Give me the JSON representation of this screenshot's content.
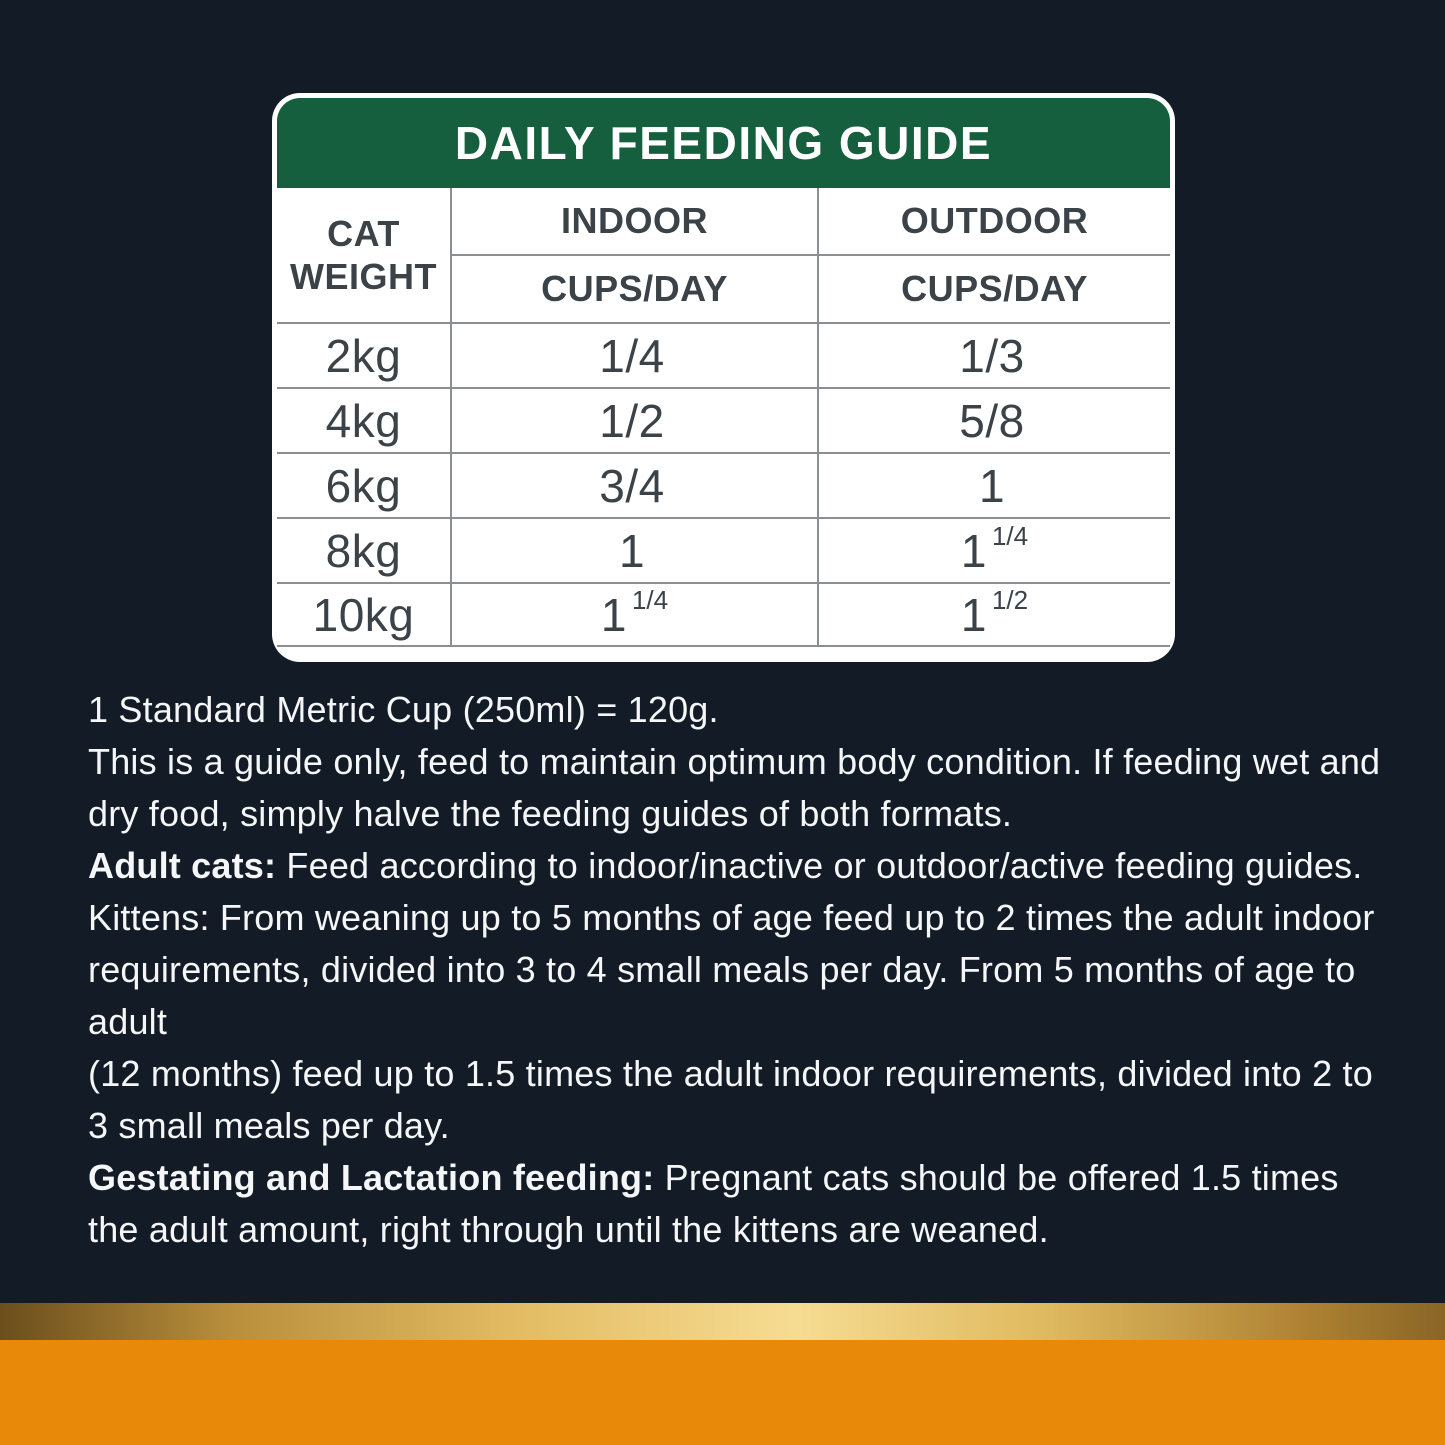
{
  "feeding_table": {
    "title": "DAILY FEEDING GUIDE",
    "columns": {
      "weight": "CAT WEIGHT",
      "indoor": {
        "label": "INDOOR",
        "sub": "CUPS/DAY"
      },
      "outdoor": {
        "label": "OUTDOOR",
        "sub": "CUPS/DAY"
      }
    },
    "rows": [
      {
        "weight": "2kg",
        "indoor": {
          "main": "1/4"
        },
        "outdoor": {
          "main": "1/3"
        }
      },
      {
        "weight": "4kg",
        "indoor": {
          "main": "1/2"
        },
        "outdoor": {
          "main": "5/8"
        }
      },
      {
        "weight": "6kg",
        "indoor": {
          "main": "3/4"
        },
        "outdoor": {
          "main": "1"
        }
      },
      {
        "weight": "8kg",
        "indoor": {
          "main": "1"
        },
        "outdoor": {
          "main": "1",
          "sup": "1/4"
        }
      },
      {
        "weight": "10kg",
        "indoor": {
          "main": "1",
          "sup": "1/4"
        },
        "outdoor": {
          "main": "1",
          "sup": "1/2"
        }
      }
    ]
  },
  "notes": {
    "p1": "1 Standard Metric Cup (250ml) = 120g.",
    "p2": "This is a guide only, feed to maintain optimum body condition. If feeding wet and dry food, simply halve the feeding guides of both formats.",
    "p3_lead": "Adult cats:",
    "p3_rest": " Feed according to indoor/inactive or outdoor/active feeding guides.",
    "p4": "Kittens: From weaning up to 5 months of age feed up to 2 times the adult indoor requirements, divided into 3 to 4 small meals per day. From 5 months of age to adult",
    "p5": "(12 months) feed up to 1.5 times the adult indoor requirements, divided into 2 to 3 small meals per day.",
    "p6_lead": "Gestating and Lactation feeding:",
    "p6_rest": " Pregnant cats should be offered 1.5 times the adult amount, right through until the kittens are weaned."
  },
  "colors": {
    "background": "#131C26",
    "header_green": "#155E3E",
    "grid_line": "#8A8F94",
    "table_text": "#3C4348",
    "notes_text": "#F4F6F7",
    "gold_stripe_dark": "#6B4E1B",
    "gold_stripe_light": "#F6DC92",
    "band_orange": "#E8890A"
  },
  "chart_data": {
    "type": "table",
    "title": "DAILY FEEDING GUIDE",
    "categories": [
      "2kg",
      "4kg",
      "6kg",
      "8kg",
      "10kg"
    ],
    "series": [
      {
        "name": "INDOOR CUPS/DAY",
        "values": [
          "1/4",
          "1/2",
          "3/4",
          "1",
          "1 1/4"
        ]
      },
      {
        "name": "OUTDOOR CUPS/DAY",
        "values": [
          "1/3",
          "5/8",
          "1",
          "1 1/4",
          "1 1/2"
        ]
      }
    ]
  }
}
